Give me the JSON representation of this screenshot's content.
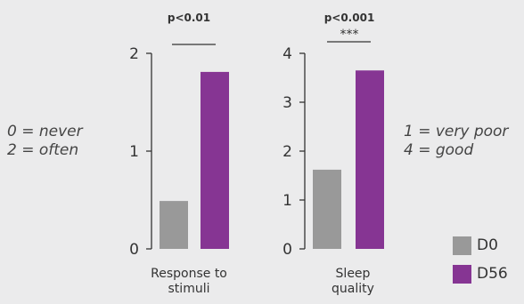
{
  "chart_data": [
    {
      "type": "bar",
      "categories": [
        "Response to stimuli"
      ],
      "category_lines": [
        "Response to",
        "stimuli"
      ],
      "series": [
        {
          "name": "D0",
          "values": [
            0.49
          ]
        },
        {
          "name": "D56",
          "values": [
            1.81
          ]
        }
      ],
      "ylim": [
        0,
        2
      ],
      "yticks": [
        "0",
        "1",
        "2"
      ],
      "significance": {
        "p": "p<0.01",
        "stars": ""
      }
    },
    {
      "type": "bar",
      "categories": [
        "Sleep quality"
      ],
      "category_lines": [
        "Sleep",
        "quality"
      ],
      "series": [
        {
          "name": "D0",
          "values": [
            1.62
          ]
        },
        {
          "name": "D56",
          "values": [
            3.65
          ]
        }
      ],
      "ylim": [
        0,
        4
      ],
      "yticks": [
        "0",
        "1",
        "2",
        "3",
        "4"
      ],
      "significance": {
        "p": "p<0.001",
        "stars": "***"
      }
    }
  ],
  "scale_notes": {
    "left": [
      "0 = never",
      "2 = often"
    ],
    "right": [
      "1 = very poor",
      "4 = good"
    ]
  },
  "legend": [
    {
      "label": "D0",
      "color": "#999999"
    },
    {
      "label": "D56",
      "color": "#863593"
    }
  ],
  "colors": {
    "axis": "#333333",
    "text": "#333333"
  },
  "legend_placement": "bottom-right"
}
